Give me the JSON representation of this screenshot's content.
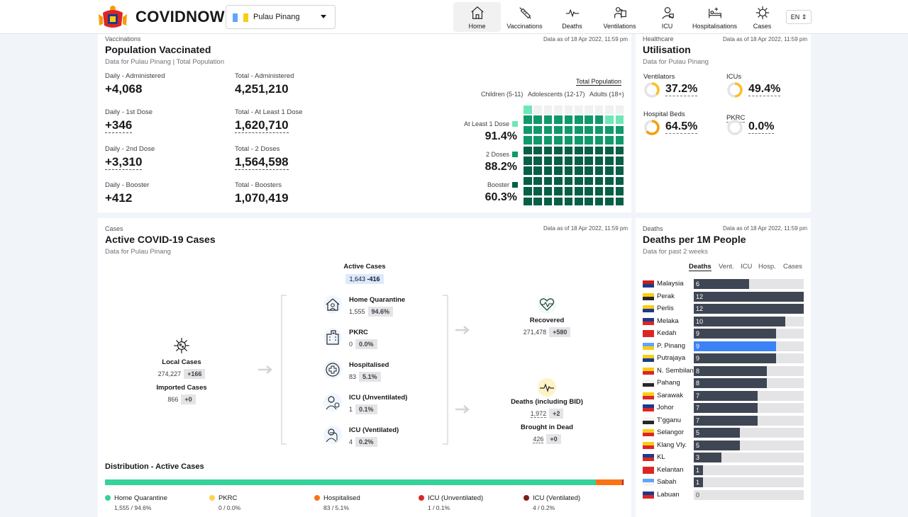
{
  "header": {
    "brand": "COVIDNOW",
    "state_select": "Pulau Pinang",
    "lang": "EN ⇕",
    "nav": [
      {
        "label": "Home",
        "icon": "home-icon",
        "active": true
      },
      {
        "label": "Vaccinations",
        "icon": "syringe-icon"
      },
      {
        "label": "Deaths",
        "icon": "pulse-icon"
      },
      {
        "label": "Ventilations",
        "icon": "ventilator-icon"
      },
      {
        "label": "ICU",
        "icon": "icu-icon"
      },
      {
        "label": "Hospitalisations",
        "icon": "hospital-bed-icon"
      },
      {
        "label": "Cases",
        "icon": "virus-icon"
      }
    ]
  },
  "vaccination": {
    "category": "Vaccinations",
    "title": "Population Vaccinated",
    "subtitle": "Data for Pulau Pinang | Total Population",
    "timestamp": "Data as of 18 Apr 2022, 11:59 pm",
    "stats": [
      {
        "label": "Daily - Administered",
        "value": "+4,068"
      },
      {
        "label": "Total - Administered",
        "value": "4,251,210"
      },
      {
        "label": "Daily - 1st Dose",
        "value": "+346"
      },
      {
        "label": "Total - At Least 1 Dose",
        "value": "1,620,710"
      },
      {
        "label": "Daily - 2nd Dose",
        "value": "+3,310"
      },
      {
        "label": "Total - 2 Doses",
        "value": "1,564,598"
      },
      {
        "label": "Daily - Booster",
        "value": "+412"
      },
      {
        "label": "Total - Boosters",
        "value": "1,070,419"
      }
    ],
    "tabs": [
      "Total Population",
      "Children (5-11)",
      "Adolescents (12-17)",
      "Adults (18+)"
    ],
    "waffle": [
      {
        "label": "At Least 1 Dose",
        "pct": "91.4%",
        "value": 91.4,
        "color": "#6ee7b7"
      },
      {
        "label": "2 Doses",
        "pct": "88.2%",
        "value": 88.2,
        "color": "#10996b"
      },
      {
        "label": "Booster",
        "pct": "60.3%",
        "value": 60.3,
        "color": "#065f46"
      }
    ]
  },
  "utilisation": {
    "category": "Healthcare",
    "title": "Utilisation",
    "subtitle": "Data for Pulau Pinang",
    "timestamp": "Data as of 18 Apr 2022, 11:59 pm",
    "items": [
      {
        "label": "Ventilators",
        "pct": "37.2%",
        "value": 37.2,
        "color": "#fbbf24"
      },
      {
        "label": "ICUs",
        "pct": "49.4%",
        "value": 49.4,
        "color": "#fbbf24"
      },
      {
        "label": "Hospital Beds",
        "pct": "64.5%",
        "value": 64.5,
        "color": "#f59e0b"
      },
      {
        "label": "PKRC",
        "pct": "0.0%",
        "value": 0,
        "color": "#d4d4d8"
      }
    ]
  },
  "cases": {
    "category": "Cases",
    "title": "Active COVID-19 Cases",
    "subtitle": "Data for Pulau Pinang",
    "timestamp": "Data as of 18 Apr 2022, 11:59 pm",
    "active": {
      "label": "Active Cases",
      "value": "1,643",
      "delta": "-416"
    },
    "local": {
      "label": "Local Cases",
      "value": "274,227",
      "delta": "+166"
    },
    "imported": {
      "label": "Imported Cases",
      "value": "866",
      "delta": "+0"
    },
    "breakdown": [
      {
        "label": "Home Quarantine",
        "value": "1,555",
        "pct": "94.6%",
        "icon": "home-quarantine-icon"
      },
      {
        "label": "PKRC",
        "value": "0",
        "pct": "0.0%",
        "icon": "pkrc-building-icon"
      },
      {
        "label": "Hospitalised",
        "value": "83",
        "pct": "5.1%",
        "icon": "hospital-cross-icon"
      },
      {
        "label": "ICU (Unventilated)",
        "value": "1",
        "pct": "0.1%",
        "icon": "icu-patient-icon"
      },
      {
        "label": "ICU (Ventilated)",
        "value": "4",
        "pct": "0.2%",
        "icon": "ventilated-patient-icon"
      }
    ],
    "recovered": {
      "label": "Recovered",
      "value": "271,478",
      "delta": "+580"
    },
    "deaths": {
      "label": "Deaths (including BID)",
      "value": "1,972",
      "delta": "+2"
    },
    "bid": {
      "label": "Brought in Dead",
      "value": "426",
      "delta": "+0"
    },
    "distribution": {
      "title": "Distribution - Active Cases",
      "items": [
        {
          "label": "Home Quarantine",
          "detail": "1,555 / 94.6%",
          "value": 94.6,
          "color": "#34d399"
        },
        {
          "label": "PKRC",
          "detail": "0 / 0.0%",
          "value": 0.0,
          "color": "#fcd34d"
        },
        {
          "label": "Hospitalised",
          "detail": "83 / 5.1%",
          "value": 5.1,
          "color": "#f97316"
        },
        {
          "label": "ICU (Unventilated)",
          "detail": "1 / 0.1%",
          "value": 0.1,
          "color": "#dc2626"
        },
        {
          "label": "ICU (Ventilated)",
          "detail": "4 / 0.2%",
          "value": 0.2,
          "color": "#7f1d1d"
        }
      ]
    }
  },
  "deaths_card": {
    "category": "Deaths",
    "title": "Deaths per 1M People",
    "subtitle": "Data for past 2 weeks",
    "timestamp": "Data as of 18 Apr 2022, 11:59 pm",
    "tabs": [
      "Deaths",
      "Vent.",
      "ICU",
      "Hosp.",
      "Cases"
    ],
    "max": 12,
    "rows": [
      {
        "state": "Malaysia",
        "value": 6,
        "flag": [
          "#c81e1e",
          "#1e3a8a"
        ]
      },
      {
        "state": "Perak",
        "value": 12,
        "flag": [
          "#facc15",
          "#27272a"
        ]
      },
      {
        "state": "Perlis",
        "value": 12,
        "flag": [
          "#facc15",
          "#1e3a8a"
        ]
      },
      {
        "state": "Melaka",
        "value": 10,
        "flag": [
          "#1e3a8a",
          "#dc2626"
        ]
      },
      {
        "state": "Kedah",
        "value": 9,
        "flag": [
          "#dc2626",
          "#dc2626"
        ]
      },
      {
        "state": "P. Pinang",
        "value": 9,
        "flag": [
          "#60a5fa",
          "#facc15"
        ],
        "highlight": true
      },
      {
        "state": "Putrajaya",
        "value": 9,
        "flag": [
          "#facc15",
          "#1e3a8a"
        ]
      },
      {
        "state": "N. Sembilan",
        "value": 8,
        "flag": [
          "#facc15",
          "#dc2626"
        ]
      },
      {
        "state": "Pahang",
        "value": 8,
        "flag": [
          "#f4f4f5",
          "#27272a"
        ]
      },
      {
        "state": "Sarawak",
        "value": 7,
        "flag": [
          "#facc15",
          "#dc2626"
        ]
      },
      {
        "state": "Johor",
        "value": 7,
        "flag": [
          "#1e3a8a",
          "#dc2626"
        ]
      },
      {
        "state": "T'gganu",
        "value": 7,
        "flag": [
          "#f4f4f5",
          "#27272a"
        ]
      },
      {
        "state": "Selangor",
        "value": 5,
        "flag": [
          "#facc15",
          "#dc2626"
        ]
      },
      {
        "state": "Klang Vly.",
        "value": 5,
        "flag": [
          "#facc15",
          "#dc2626"
        ]
      },
      {
        "state": "KL",
        "value": 3,
        "flag": [
          "#1e3a8a",
          "#dc2626"
        ]
      },
      {
        "state": "Kelantan",
        "value": 1,
        "flag": [
          "#dc2626",
          "#dc2626"
        ]
      },
      {
        "state": "Sabah",
        "value": 1,
        "flag": [
          "#60a5fa",
          "#f4f4f5"
        ]
      },
      {
        "state": "Labuan",
        "value": 0,
        "flag": [
          "#1e3a8a",
          "#dc2626"
        ]
      }
    ]
  }
}
